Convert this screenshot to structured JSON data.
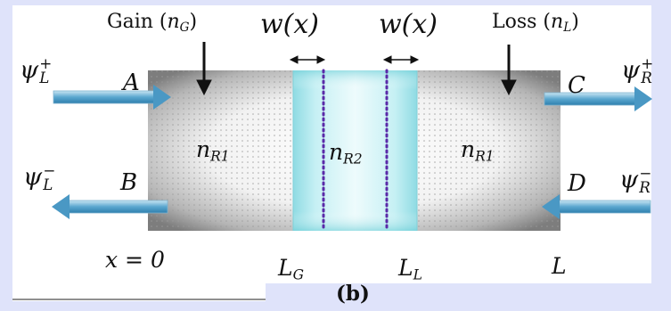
{
  "labels": {
    "gain": "Gain",
    "gain_symbol": "n",
    "gain_sub": "G",
    "loss": "Loss",
    "loss_symbol": "n",
    "loss_sub": "L",
    "w_left": "w(x)",
    "w_right": "w(x)",
    "psi": "ψ",
    "psi_L_plus": {
      "sup": "+",
      "sub": "L"
    },
    "psi_L_minus": {
      "sup": "−",
      "sub": "L"
    },
    "psi_R_plus": {
      "sup": "+",
      "sub": "R"
    },
    "psi_R_minus": {
      "sup": "−",
      "sub": "R"
    },
    "A": "A",
    "B": "B",
    "C": "C",
    "D": "D",
    "nR1_left": {
      "base": "n",
      "sub": "R1"
    },
    "nR2": {
      "base": "n",
      "sub": "R2"
    },
    "nR1_right": {
      "base": "n",
      "sub": "R1"
    },
    "x0": "x = 0",
    "LG": {
      "base": "L",
      "sub": "G"
    },
    "LL": {
      "base": "L",
      "sub": "L"
    },
    "L": "L",
    "caption": "(b)"
  },
  "colors": {
    "frame": "#dfe3fa",
    "slab_gray": "#8a8a8a",
    "center_cyan": "#bfeef2",
    "dotted_line": "#5a2aa8",
    "arrow_blue": "#5aa7cf"
  }
}
